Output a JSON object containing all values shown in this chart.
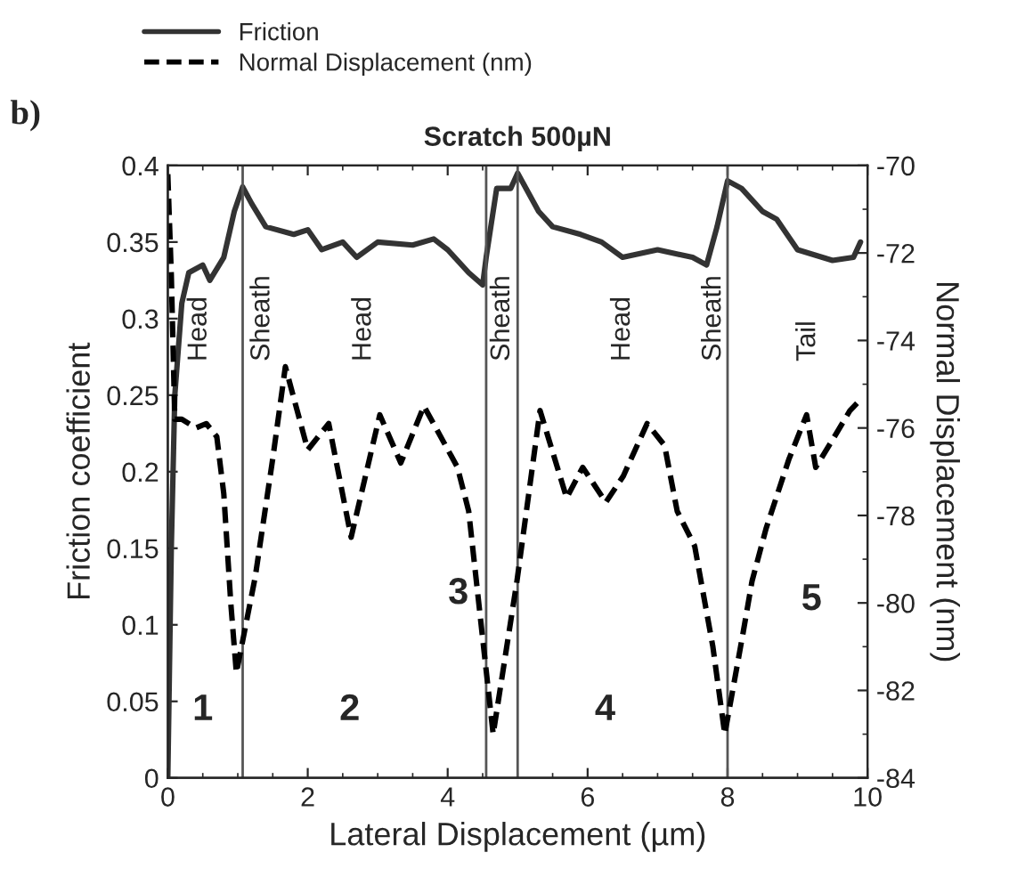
{
  "chart_data": {
    "type": "line",
    "title": "Scratch 500µN",
    "xlabel": "Lateral Displacement (µm)",
    "ylabel": "Friction coefficient",
    "y2label": "Normal Displacement (nm)",
    "xlim": [
      0,
      10
    ],
    "xticks": [
      0,
      2,
      4,
      6,
      8,
      10
    ],
    "ylim": [
      0,
      0.4
    ],
    "yticks": [
      0,
      0.05,
      0.1,
      0.15,
      0.2,
      0.25,
      0.3,
      0.35,
      0.4
    ],
    "y2lim": [
      -84,
      -70
    ],
    "y2ticks": [
      -84,
      -82,
      -80,
      -78,
      -76,
      -74,
      -72,
      -70
    ],
    "legend": "top left",
    "grid": false,
    "marker": "none",
    "series": [
      {
        "name": "Friction",
        "color": "#333333",
        "line_style": "solid",
        "x": [
          0,
          0.05,
          0.1,
          0.2,
          0.3,
          0.5,
          0.6,
          0.8,
          0.95,
          1.07,
          1.2,
          1.4,
          1.8,
          2.0,
          2.2,
          2.5,
          2.7,
          3.0,
          3.5,
          3.8,
          4.0,
          4.3,
          4.5,
          4.55,
          4.7,
          4.9,
          5.0,
          5.3,
          5.5,
          5.9,
          6.2,
          6.5,
          7.0,
          7.5,
          7.7,
          7.85,
          8.0,
          8.2,
          8.5,
          8.7,
          9.0,
          9.5,
          9.8,
          9.9
        ],
        "values": [
          0,
          0.15,
          0.25,
          0.31,
          0.33,
          0.335,
          0.325,
          0.34,
          0.37,
          0.386,
          0.375,
          0.36,
          0.355,
          0.358,
          0.345,
          0.35,
          0.34,
          0.35,
          0.348,
          0.352,
          0.345,
          0.33,
          0.322,
          0.34,
          0.385,
          0.385,
          0.395,
          0.37,
          0.36,
          0.355,
          0.35,
          0.34,
          0.345,
          0.34,
          0.335,
          0.36,
          0.39,
          0.385,
          0.37,
          0.365,
          0.345,
          0.338,
          0.34,
          0.35
        ]
      },
      {
        "name": "Normal Displacement (nm)",
        "color": "#000000",
        "line_style": "dashed",
        "axis": "y2",
        "x": [
          0,
          0.05,
          0.1,
          0.2,
          0.4,
          0.55,
          0.7,
          0.8,
          0.9,
          0.98,
          1.25,
          1.5,
          1.68,
          2.0,
          2.3,
          2.62,
          3.03,
          3.33,
          3.66,
          4.14,
          4.3,
          4.65,
          4.99,
          5.32,
          5.7,
          5.93,
          6.26,
          6.51,
          6.85,
          7.1,
          7.28,
          7.53,
          7.79,
          7.96,
          8.22,
          8.35,
          8.55,
          8.88,
          9.13,
          9.26,
          9.49,
          9.75,
          9.87
        ],
        "values": [
          -70.2,
          -72.5,
          -75.8,
          -75.8,
          -76.0,
          -75.9,
          -76.2,
          -77.5,
          -80,
          -81.6,
          -79.4,
          -76.7,
          -74.6,
          -76.5,
          -75.9,
          -78.5,
          -75.7,
          -76.8,
          -75.5,
          -76.9,
          -77.9,
          -83.0,
          -79.5,
          -75.6,
          -77.6,
          -76.9,
          -77.7,
          -77.1,
          -75.9,
          -76.4,
          -77.9,
          -78.7,
          -81.0,
          -83.0,
          -80.7,
          -79.5,
          -78.3,
          -76.7,
          -75.7,
          -76.9,
          -76.3,
          -75.6,
          -75.4
        ]
      }
    ],
    "ref_lines": [
      {
        "axis": "x",
        "value": 1.07,
        "color": "#555555"
      },
      {
        "axis": "x",
        "value": 4.55,
        "color": "#555555"
      },
      {
        "axis": "x",
        "value": 5.0,
        "color": "#555555"
      },
      {
        "axis": "x",
        "value": 8.0,
        "color": "#555555"
      }
    ],
    "annotations": [
      "b)",
      "Head",
      "Sheath",
      "Head",
      "Sheath",
      "Head",
      "Sheath",
      "Tail",
      "1",
      "2",
      "3",
      "4",
      "5"
    ]
  }
}
